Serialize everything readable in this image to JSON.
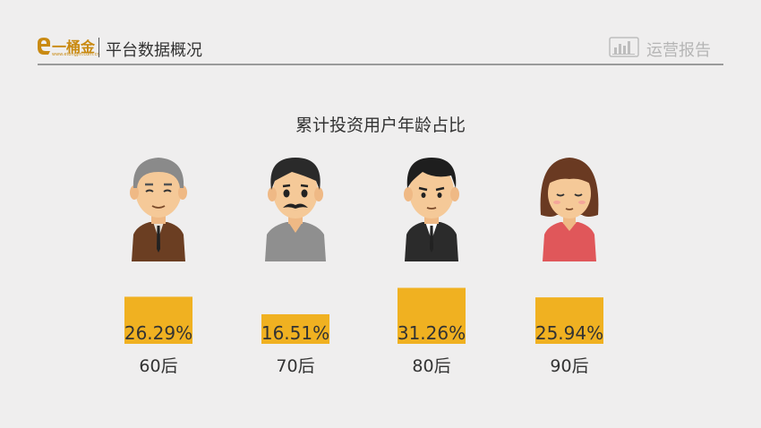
{
  "header": {
    "logo_text": "一桶金",
    "logo_url": "www.etongjin.com.cn",
    "title": "平台数据概况",
    "report_label": "运营报告"
  },
  "colors": {
    "bar": "#f0b121",
    "rule": "#9a9a9a",
    "accent": "#c98a12"
  },
  "icons": [
    "chart-report-icon",
    "logo-icon"
  ],
  "chart_data": {
    "type": "bar",
    "title": "累计投资用户年龄占比",
    "categories": [
      "60后",
      "70后",
      "80后",
      "90后"
    ],
    "values": [
      26.29,
      16.51,
      31.26,
      25.94
    ],
    "value_labels": [
      "26.29%",
      "16.51%",
      "31.26%",
      "25.94%"
    ],
    "unit": "%",
    "ylim": [
      0,
      100
    ],
    "grid": false,
    "xlabel": "",
    "ylabel": ""
  }
}
